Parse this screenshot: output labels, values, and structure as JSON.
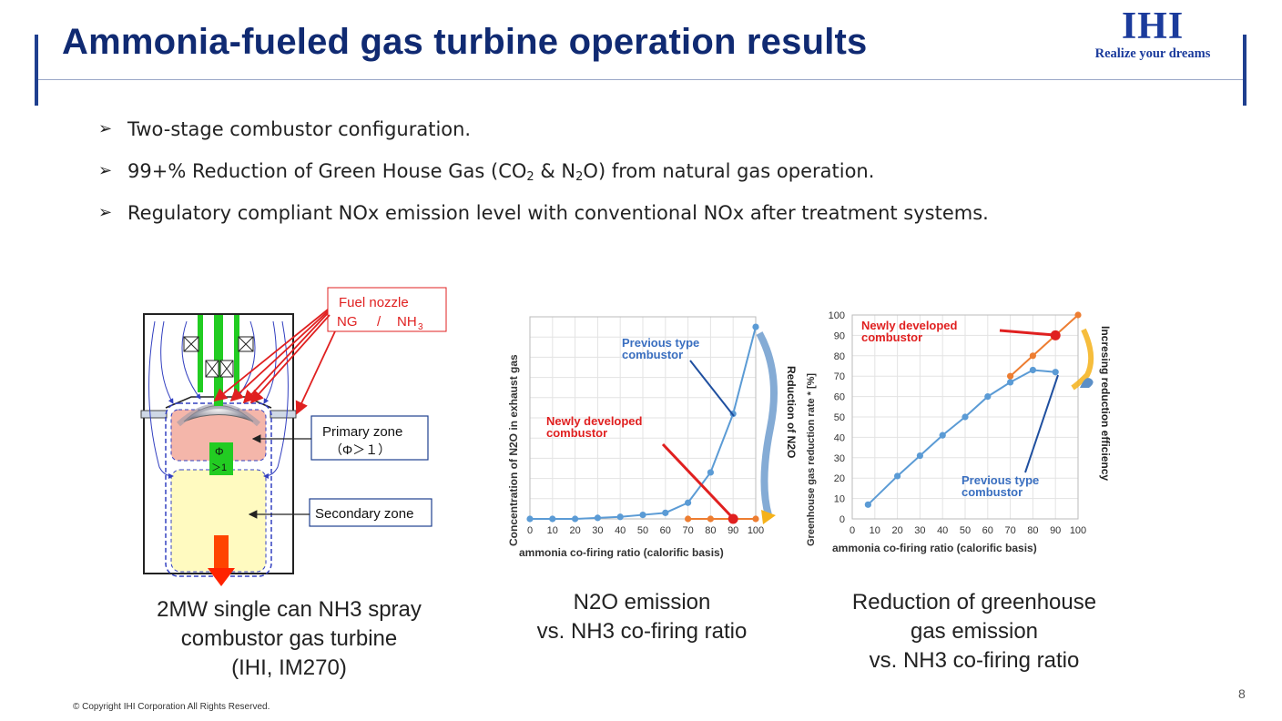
{
  "header": {
    "title": "Ammonia-fueled gas turbine operation results",
    "logo_mark": "IHI",
    "logo_tagline": "Realize your dreams"
  },
  "bullets": [
    {
      "pre": "Two-stage combustor configuration.",
      "sub1": "",
      "mid": "",
      "sub2": "",
      "post": ""
    },
    {
      "pre": "99+% Reduction of Green House Gas (CO",
      "sub1": "2",
      "mid": " & N",
      "sub2": "2",
      "post": "O) from natural gas operation."
    },
    {
      "pre": "Regulatory compliant NOx emission level with conventional NOx after treatment systems.",
      "sub1": "",
      "mid": "",
      "sub2": "",
      "post": ""
    }
  ],
  "combustor": {
    "fuel_nozzle_label": "Fuel nozzle",
    "fuel_nozzle_ng": "NG",
    "fuel_nozzle_sep": "/",
    "fuel_nozzle_nh3": "NH",
    "fuel_nozzle_nh3_sub": "3",
    "primary_zone_label": "Primary zone",
    "primary_zone_cond": "（Φ＞１）",
    "secondary_zone_label": "Secondary zone",
    "phi_symbol": "Φ",
    "phi_cond": "＞1",
    "caption": [
      "2MW single can NH3 spray",
      "combustor gas turbine",
      "(IHI, IM270)"
    ]
  },
  "chart_data": [
    {
      "type": "line",
      "title": "",
      "xlabel": "ammonia co-firing ratio  (calorific basis)",
      "ylabel": "Concentration of N2O in exhaust gas",
      "xlim": [
        0,
        100
      ],
      "ylim": [
        0,
        1
      ],
      "x_ticks": [
        "0",
        "10",
        "20",
        "30",
        "40",
        "50",
        "60",
        "70",
        "80",
        "90",
        "100"
      ],
      "grid": true,
      "series": [
        {
          "name": "Previous type combustor",
          "color": "#5b9bd5",
          "x": [
            0,
            10,
            20,
            30,
            40,
            50,
            60,
            70,
            80,
            90,
            100
          ],
          "values": [
            0.0,
            0.0,
            0.0,
            0.005,
            0.01,
            0.02,
            0.03,
            0.08,
            0.23,
            0.52,
            0.95
          ]
        },
        {
          "name": "Newly developed combustor",
          "color": "#ed7d31",
          "x": [
            70,
            80,
            90,
            100
          ],
          "values": [
            0.0,
            0.0,
            0.0,
            0.0
          ],
          "highlight": {
            "x": 90,
            "value": 0.0,
            "color": "#e02020"
          }
        }
      ],
      "annotations": {
        "previous": [
          "Previous type",
          "combustor"
        ],
        "newly": [
          "Newly developed",
          "combustor"
        ],
        "right": "Reduction of N2O"
      },
      "caption": [
        "N2O emission",
        "vs. NH3 co-firing ratio"
      ]
    },
    {
      "type": "line",
      "title": "",
      "xlabel": "ammonia co-firing ratio  (calorific basis)",
      "ylabel": "Greenhouse gas reduction rate * [%]",
      "xlim": [
        0,
        100
      ],
      "ylim": [
        0,
        100
      ],
      "x_ticks": [
        "0",
        "10",
        "20",
        "30",
        "40",
        "50",
        "60",
        "70",
        "80",
        "90",
        "100"
      ],
      "y_ticks": [
        "0",
        "10",
        "20",
        "30",
        "40",
        "50",
        "60",
        "70",
        "80",
        "90",
        "100"
      ],
      "grid": true,
      "series": [
        {
          "name": "Previous type combustor",
          "color": "#5b9bd5",
          "x": [
            7,
            20,
            30,
            40,
            50,
            60,
            70,
            80,
            90
          ],
          "values": [
            7,
            21,
            31,
            41,
            50,
            60,
            67,
            73,
            72
          ]
        },
        {
          "name": "Newly developed combustor",
          "color": "#ed7d31",
          "x": [
            70,
            80,
            90,
            100
          ],
          "values": [
            70,
            80,
            90,
            100
          ],
          "highlight": {
            "x": 90,
            "value": 90,
            "color": "#e02020"
          }
        }
      ],
      "annotations": {
        "previous": [
          "Previous type",
          "combustor"
        ],
        "newly": [
          "Newly developed",
          "combustor"
        ],
        "right": "Incresing reduction efficiency"
      },
      "caption": [
        "Reduction of  greenhouse",
        "gas emission",
        "vs. NH3 co-firing ratio"
      ]
    }
  ],
  "footer": {
    "copyright": "© Copyright  IHI Corporation All Rights Reserved.",
    "page_number": "8"
  }
}
